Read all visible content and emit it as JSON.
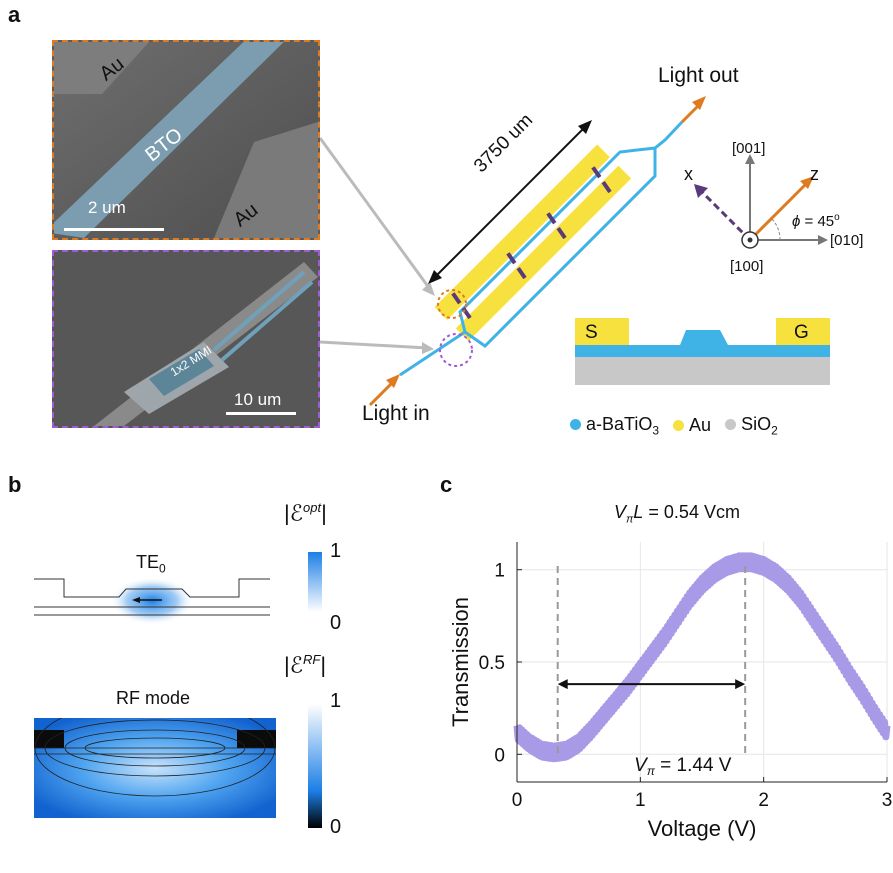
{
  "panel_a": {
    "letter": "a",
    "sem_top": {
      "labels": [
        "Au",
        "BTO",
        "Au"
      ],
      "scale": "2 um",
      "border_color": "#e07a1f"
    },
    "sem_bottom": {
      "label": "1x2 MMI",
      "scale": "10 um",
      "border_color": "#a05cd6"
    },
    "device": {
      "length_label": "3750 um",
      "light_out": "Light out",
      "light_in": "Light in",
      "waveguide_color": "#3fb3e6",
      "electrode_color": "#f7e13e",
      "arrow_color": "#e07a1f",
      "dashed_arrow_color": "#5b3a7a"
    },
    "axes": {
      "x": "x",
      "z": "z",
      "top": "[001]",
      "right": "[010]",
      "bottom": "[100]",
      "phi_symbol": "ϕ",
      "phi_value": " = 45",
      "phi_unit": "o"
    },
    "cross_section": {
      "left": "S",
      "right": "G"
    },
    "legend": [
      {
        "base": "a-BaTiO",
        "sub": "3",
        "color": "#3fb3e6"
      },
      {
        "base": "Au",
        "sub": "",
        "color": "#f7e13e"
      },
      {
        "base": "SiO",
        "sub": "2",
        "color": "#c8c8c8"
      }
    ]
  },
  "panel_b": {
    "letter": "b",
    "te_title": "TE",
    "te_sub": "0",
    "opt_label": "|ℰ",
    "opt_sup": "opt",
    "opt_close": "|",
    "opt_max": "1",
    "opt_min": "0",
    "rf_title": "RF mode",
    "rf_label": "|ℰ",
    "rf_sup": "RF",
    "rf_close": "|",
    "rf_max": "1",
    "rf_min": "0"
  },
  "panel_c": {
    "letter": "c"
  },
  "chart_data": {
    "type": "line",
    "title_sym": "V",
    "title_sub": "π",
    "title_L": "L",
    "title_rest": " = 0.54 Vcm",
    "xlabel": "Voltage (V)",
    "ylabel": "Transmission",
    "xlim": [
      0,
      3
    ],
    "ylim": [
      -0.15,
      1.15
    ],
    "x_ticks": [
      0,
      1,
      2,
      3
    ],
    "y_ticks": [
      0,
      0.5,
      1
    ],
    "y_tick_labels": [
      "0",
      "0.5",
      "1"
    ],
    "grid": true,
    "series": [
      {
        "color": "#a99ae8",
        "x": [
          0,
          0.1,
          0.2,
          0.3,
          0.4,
          0.5,
          0.6,
          0.7,
          0.8,
          0.9,
          1.0,
          1.1,
          1.2,
          1.3,
          1.4,
          1.5,
          1.6,
          1.7,
          1.8,
          1.9,
          2.0,
          2.1,
          2.2,
          2.3,
          2.4,
          2.5,
          2.6,
          2.7,
          2.8,
          2.9,
          3.0
        ],
        "values": [
          0.12,
          0.06,
          0.02,
          0.01,
          0.02,
          0.06,
          0.13,
          0.21,
          0.29,
          0.37,
          0.46,
          0.55,
          0.64,
          0.74,
          0.84,
          0.92,
          0.98,
          1.02,
          1.04,
          1.04,
          1.02,
          0.98,
          0.92,
          0.84,
          0.74,
          0.64,
          0.54,
          0.43,
          0.33,
          0.22,
          0.12
        ]
      }
    ],
    "markers": [
      0.33,
      1.85
    ],
    "vpi_sym": "V",
    "vpi_sub": "π",
    "vpi_rest": " = 1.44 V"
  }
}
